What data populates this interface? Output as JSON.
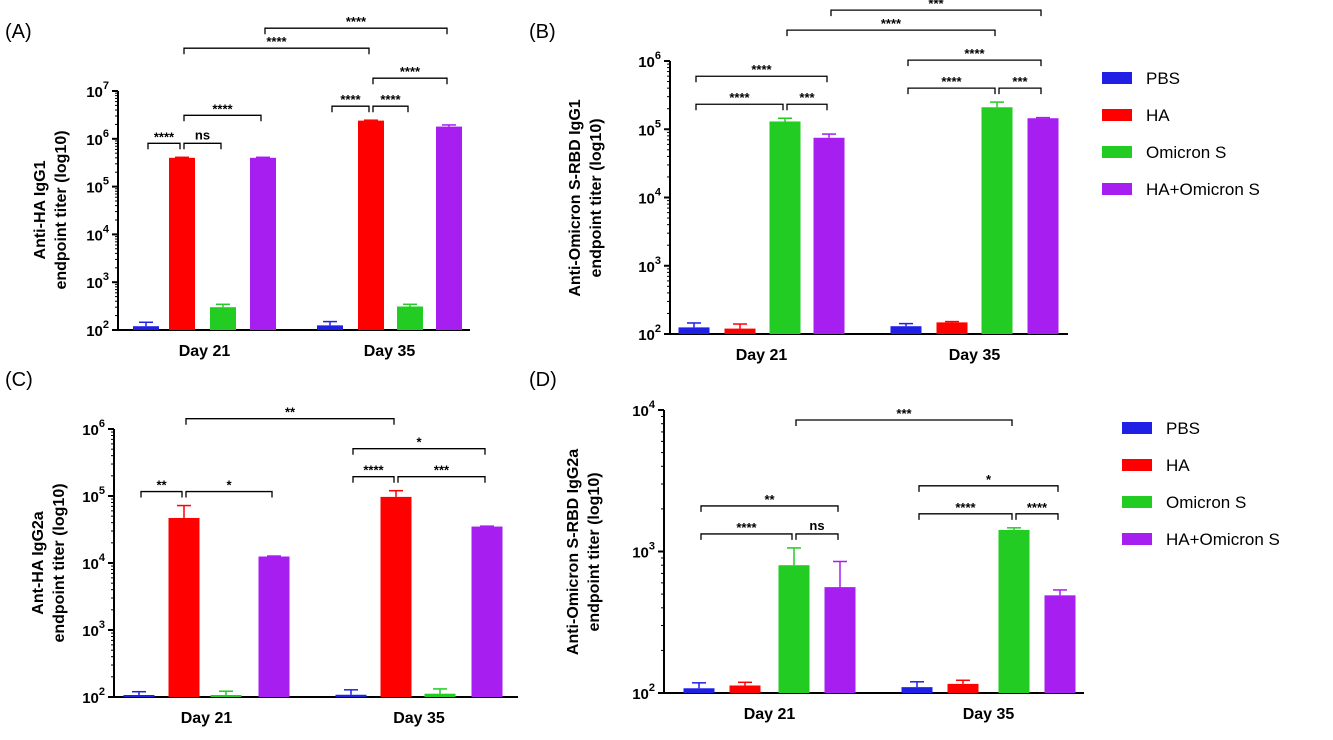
{
  "legend": [
    {
      "name": "PBS",
      "color": "#1f1fe6"
    },
    {
      "name": "HA",
      "color": "#ff0000"
    },
    {
      "name": "Omicron S",
      "color": "#22cc22"
    },
    {
      "name": "HA+Omicron S",
      "color": "#a61ff0"
    }
  ],
  "chart_data": [
    {
      "panel": "(A)",
      "type": "bar",
      "scale": "log10",
      "ylabel": [
        "Anti-HA IgG1",
        "endpoint titer (log10)"
      ],
      "categories": [
        "Day 21",
        "Day 35"
      ],
      "ylim": [
        100,
        10000000
      ],
      "yticks": [
        {
          "v": 100,
          "e": "2"
        },
        {
          "v": 1000,
          "e": "3"
        },
        {
          "v": 10000,
          "e": "4"
        },
        {
          "v": 100000,
          "e": "5"
        },
        {
          "v": 1000000,
          "e": "6"
        },
        {
          "v": 10000000,
          "e": "7"
        }
      ],
      "series": [
        {
          "name": "PBS",
          "values": [
            120,
            125
          ],
          "errors": [
            145,
            150
          ]
        },
        {
          "name": "HA",
          "values": [
            400000,
            2400000
          ],
          "errors": [
            410000,
            2450000
          ]
        },
        {
          "name": "Omicron S",
          "values": [
            300,
            310
          ],
          "errors": [
            345,
            345
          ]
        },
        {
          "name": "HA+Omicron S",
          "values": [
            400000,
            1800000
          ],
          "errors": [
            410000,
            1950000
          ]
        }
      ],
      "comparisons": [
        {
          "a": [
            0,
            1
          ],
          "b": [
            0,
            3
          ],
          "label": "****"
        },
        {
          "a": [
            0,
            1
          ],
          "b": [
            0,
            2
          ],
          "label": "ns"
        },
        {
          "a": [
            0,
            0
          ],
          "b": [
            0,
            1
          ],
          "label": "****"
        },
        {
          "a": [
            1,
            1
          ],
          "b": [
            1,
            3
          ],
          "label": "****"
        },
        {
          "a": [
            1,
            0
          ],
          "b": [
            1,
            1
          ],
          "label": "****"
        },
        {
          "a": [
            1,
            1
          ],
          "b": [
            1,
            2
          ],
          "label": "****"
        },
        {
          "a": [
            0,
            1
          ],
          "b": [
            1,
            1
          ],
          "label": "****"
        },
        {
          "a": [
            0,
            3
          ],
          "b": [
            1,
            3
          ],
          "label": "****"
        }
      ]
    },
    {
      "panel": "(B)",
      "type": "bar",
      "scale": "log10",
      "ylabel": [
        "Anti-Omicron S-RBD IgG1",
        "endpoint titer (log10)"
      ],
      "categories": [
        "Day 21",
        "Day 35"
      ],
      "ylim": [
        100,
        1000000
      ],
      "yticks": [
        {
          "v": 100,
          "e": "2"
        },
        {
          "v": 1000,
          "e": "3"
        },
        {
          "v": 10000,
          "e": "4"
        },
        {
          "v": 100000,
          "e": "5"
        },
        {
          "v": 1000000,
          "e": "6"
        }
      ],
      "series": [
        {
          "name": "PBS",
          "values": [
            125,
            130
          ],
          "errors": [
            145,
            142
          ]
        },
        {
          "name": "HA",
          "values": [
            120,
            148
          ],
          "errors": [
            140,
            152
          ]
        },
        {
          "name": "Omicron S",
          "values": [
            130000,
            210000
          ],
          "errors": [
            145000,
            250000
          ]
        },
        {
          "name": "HA+Omicron S",
          "values": [
            75000,
            145000
          ],
          "errors": [
            85000,
            148000
          ]
        }
      ],
      "comparisons": [
        {
          "a": [
            0,
            0
          ],
          "b": [
            0,
            3
          ],
          "label": "****"
        },
        {
          "a": [
            0,
            0
          ],
          "b": [
            0,
            2
          ],
          "label": "****"
        },
        {
          "a": [
            0,
            2
          ],
          "b": [
            0,
            3
          ],
          "label": "***"
        },
        {
          "a": [
            1,
            0
          ],
          "b": [
            1,
            3
          ],
          "label": "****"
        },
        {
          "a": [
            1,
            0
          ],
          "b": [
            1,
            2
          ],
          "label": "****"
        },
        {
          "a": [
            1,
            2
          ],
          "b": [
            1,
            3
          ],
          "label": "***"
        },
        {
          "a": [
            0,
            2
          ],
          "b": [
            1,
            2
          ],
          "label": "****"
        },
        {
          "a": [
            0,
            3
          ],
          "b": [
            1,
            3
          ],
          "label": "***"
        }
      ]
    },
    {
      "panel": "(C)",
      "type": "bar",
      "scale": "log10",
      "ylabel": [
        "Ant-HA IgG2a",
        "endpoint titer (log10)"
      ],
      "categories": [
        "Day 21",
        "Day 35"
      ],
      "ylim": [
        100,
        1000000
      ],
      "yticks": [
        {
          "v": 100,
          "e": "2"
        },
        {
          "v": 1000,
          "e": "3"
        },
        {
          "v": 10000,
          "e": "4"
        },
        {
          "v": 100000,
          "e": "5"
        },
        {
          "v": 1000000,
          "e": "6"
        }
      ],
      "series": [
        {
          "name": "PBS",
          "values": [
            105,
            108
          ],
          "errors": [
            120,
            128
          ]
        },
        {
          "name": "HA",
          "values": [
            47000,
            97000
          ],
          "errors": [
            72000,
            120000
          ]
        },
        {
          "name": "Omicron S",
          "values": [
            104,
            112
          ],
          "errors": [
            122,
            132
          ]
        },
        {
          "name": "HA+Omicron S",
          "values": [
            12500,
            35000
          ],
          "errors": [
            12700,
            35500
          ]
        }
      ],
      "comparisons": [
        {
          "a": [
            0,
            0
          ],
          "b": [
            0,
            1
          ],
          "label": "**"
        },
        {
          "a": [
            0,
            1
          ],
          "b": [
            0,
            3
          ],
          "label": "*"
        },
        {
          "a": [
            1,
            0
          ],
          "b": [
            1,
            3
          ],
          "label": "*"
        },
        {
          "a": [
            1,
            0
          ],
          "b": [
            1,
            1
          ],
          "label": "****"
        },
        {
          "a": [
            1,
            1
          ],
          "b": [
            1,
            3
          ],
          "label": "***"
        },
        {
          "a": [
            0,
            1
          ],
          "b": [
            1,
            1
          ],
          "label": "**"
        }
      ]
    },
    {
      "panel": "(D)",
      "type": "bar",
      "scale": "log10",
      "ylabel": [
        "Anti-Omicron S-RBD IgG2a",
        "endpoint titer (log10)"
      ],
      "categories": [
        "Day 21",
        "Day 35"
      ],
      "ylim": [
        100,
        10000
      ],
      "yticks": [
        {
          "v": 100,
          "e": "2"
        },
        {
          "v": 1000,
          "e": "3"
        },
        {
          "v": 10000,
          "e": "4"
        }
      ],
      "series": [
        {
          "name": "PBS",
          "values": [
            108,
            110
          ],
          "errors": [
            118,
            120
          ]
        },
        {
          "name": "HA",
          "values": [
            113,
            116
          ],
          "errors": [
            119,
            123
          ]
        },
        {
          "name": "Omicron S",
          "values": [
            800,
            1420
          ],
          "errors": [
            1060,
            1470
          ]
        },
        {
          "name": "HA+Omicron S",
          "values": [
            560,
            490
          ],
          "errors": [
            850,
            535
          ]
        }
      ],
      "comparisons": [
        {
          "a": [
            0,
            0
          ],
          "b": [
            0,
            3
          ],
          "label": "**"
        },
        {
          "a": [
            0,
            0
          ],
          "b": [
            0,
            2
          ],
          "label": "****"
        },
        {
          "a": [
            0,
            2
          ],
          "b": [
            0,
            3
          ],
          "label": "ns"
        },
        {
          "a": [
            1,
            0
          ],
          "b": [
            1,
            3
          ],
          "label": "*"
        },
        {
          "a": [
            1,
            0
          ],
          "b": [
            1,
            2
          ],
          "label": "****"
        },
        {
          "a": [
            1,
            2
          ],
          "b": [
            1,
            3
          ],
          "label": "****"
        },
        {
          "a": [
            0,
            2
          ],
          "b": [
            1,
            2
          ],
          "label": "***"
        }
      ]
    }
  ]
}
